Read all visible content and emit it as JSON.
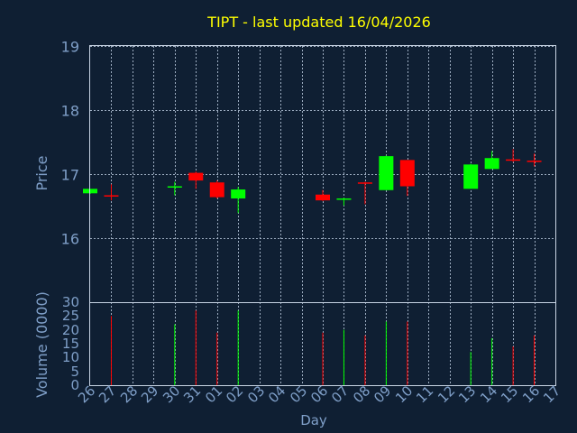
{
  "chart_data": {
    "type": "candlestick",
    "title": "TIPT - last updated 16/04/2026",
    "xlabel": "Day",
    "ylabel_price": "Price",
    "ylabel_volume": "Volume (0000)",
    "x_ticks": [
      "26",
      "27",
      "28",
      "29",
      "30",
      "31",
      "01",
      "02",
      "03",
      "04",
      "05",
      "06",
      "07",
      "08",
      "09",
      "10",
      "11",
      "12",
      "13",
      "14",
      "15",
      "16",
      "17"
    ],
    "price_ticks": [
      16,
      17,
      18,
      19
    ],
    "price_range": [
      15.0,
      19.0
    ],
    "volume_ticks": [
      0,
      5,
      10,
      15,
      20,
      25,
      30
    ],
    "volume_range": [
      0,
      30
    ],
    "grid": true,
    "colors": {
      "up": "#00ff00",
      "down": "#ff0000",
      "title": "#ffff00",
      "background": "#0f1f33",
      "axis_text": "#7f9fc8",
      "volume_label": "#ffffff"
    },
    "candles": [
      {
        "day": "26",
        "open": 16.7,
        "high": 16.77,
        "low": 16.69,
        "close": 16.77,
        "volume": 0
      },
      {
        "day": "27",
        "open": 16.67,
        "high": 16.84,
        "low": 16.59,
        "close": 16.66,
        "volume": 25
      },
      {
        "day": "30",
        "open": 16.8,
        "high": 16.88,
        "low": 16.67,
        "close": 16.81,
        "volume": 22
      },
      {
        "day": "31",
        "open": 17.02,
        "high": 17.04,
        "low": 16.77,
        "close": 16.9,
        "volume": 27
      },
      {
        "day": "01",
        "open": 16.87,
        "high": 16.9,
        "low": 16.62,
        "close": 16.64,
        "volume": 19
      },
      {
        "day": "02",
        "open": 16.62,
        "high": 16.8,
        "low": 16.39,
        "close": 16.76,
        "volume": 27
      },
      {
        "day": "06",
        "open": 16.68,
        "high": 16.75,
        "low": 16.58,
        "close": 16.59,
        "volume": 19
      },
      {
        "day": "07",
        "open": 16.6,
        "high": 16.63,
        "low": 16.51,
        "close": 16.62,
        "volume": 20
      },
      {
        "day": "08",
        "open": 16.87,
        "high": 16.88,
        "low": 16.53,
        "close": 16.86,
        "volume": 18
      },
      {
        "day": "09",
        "open": 16.75,
        "high": 17.29,
        "low": 16.75,
        "close": 17.28,
        "volume": 23
      },
      {
        "day": "10",
        "open": 17.22,
        "high": 17.22,
        "low": 16.66,
        "close": 16.81,
        "volume": 23
      },
      {
        "day": "13",
        "open": 16.77,
        "high": 17.16,
        "low": 16.77,
        "close": 17.15,
        "volume": 12
      },
      {
        "day": "14",
        "open": 17.08,
        "high": 17.36,
        "low": 17.08,
        "close": 17.25,
        "volume": 17
      },
      {
        "day": "15",
        "open": 17.23,
        "high": 17.39,
        "low": 17.19,
        "close": 17.22,
        "volume": 14
      },
      {
        "day": "16",
        "open": 17.21,
        "high": 17.32,
        "low": 17.12,
        "close": 17.2,
        "volume": 18
      }
    ]
  }
}
